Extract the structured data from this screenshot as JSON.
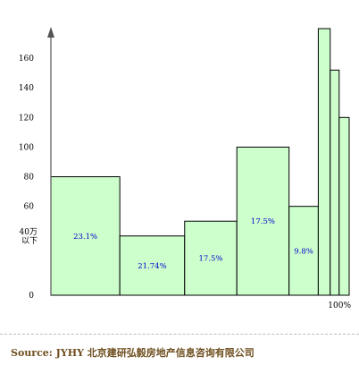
{
  "chart_data": {
    "type": "bar",
    "variable_width": true,
    "ylim": [
      0,
      180
    ],
    "yticks": [
      "0",
      "60",
      "80",
      "100",
      "120",
      "140",
      "160"
    ],
    "ytick_values": [
      0,
      60,
      80,
      100,
      120,
      140,
      160
    ],
    "low_tick_label": [
      "40万",
      "以下"
    ],
    "low_tick_value": 40,
    "x_end_label": "100%",
    "bars": [
      {
        "value": 80,
        "width": 23.1,
        "label": "23.1%"
      },
      {
        "value": 40,
        "width": 21.74,
        "label": "21.74%"
      },
      {
        "value": 50,
        "width": 17.5,
        "label": "17.5%"
      },
      {
        "value": 100,
        "width": 17.5,
        "label": "17.5%"
      },
      {
        "value": 60,
        "width": 9.8,
        "label": "9.8%"
      },
      {
        "value": 180,
        "width": 4.0,
        "label": ""
      },
      {
        "value": 152,
        "width": 3.0,
        "label": ""
      },
      {
        "value": 120,
        "width": 3.36,
        "label": ""
      }
    ],
    "bar_color": "#ccffcc",
    "bar_edge_color": "#000000",
    "label_color": "#0000cc",
    "grid": false
  },
  "source": "Source: JYHY 北京建研弘毅房地产信息咨询有限公司"
}
